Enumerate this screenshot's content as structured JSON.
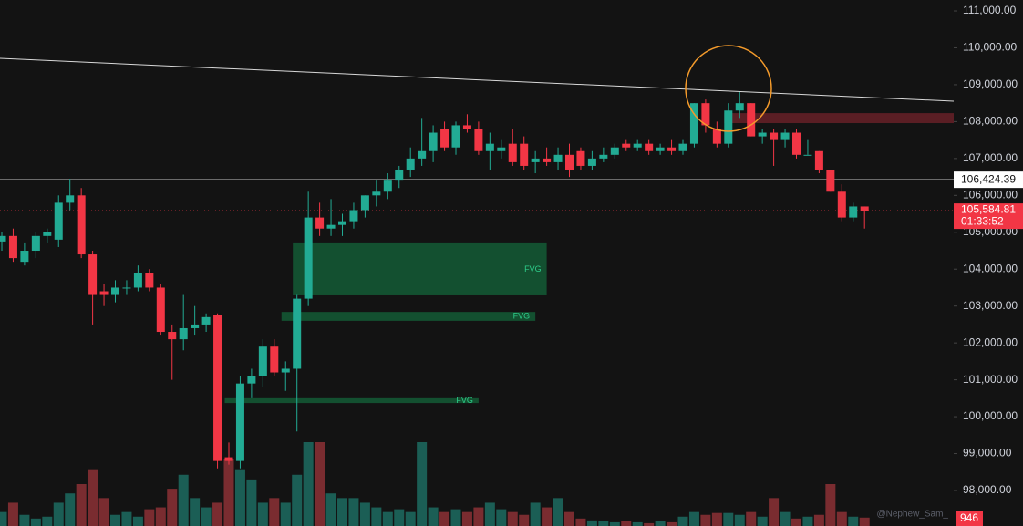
{
  "chart_data": {
    "type": "candlestick",
    "open": [
      104750,
      104900,
      104200,
      104500,
      104900,
      104800,
      105800,
      106000,
      104400,
      103400,
      103300,
      103500,
      103500,
      103900,
      103500,
      102300,
      102100,
      102400,
      102500,
      102750,
      98900,
      98800,
      100900,
      101100,
      101900,
      101200,
      101300,
      103200,
      105400,
      105100,
      105200,
      105300,
      105600,
      106000,
      106100,
      106400,
      106700,
      107000,
      107200,
      107800,
      107300,
      107900,
      107800,
      107200,
      107200,
      107400,
      107400,
      106900,
      107000,
      106900,
      107100,
      107200,
      106800,
      107000,
      107100,
      107400,
      107300,
      107400,
      107200,
      107300,
      107200,
      107400,
      108500,
      107800,
      107400,
      108300,
      108500,
      107600,
      107700,
      107500,
      107700,
      107100,
      107200,
      106700,
      106100,
      105400,
      105700
    ],
    "high": [
      105000,
      105100,
      104700,
      105000,
      105100,
      106000,
      106450,
      106200,
      104500,
      103600,
      103700,
      103700,
      104100,
      104000,
      103600,
      102500,
      103300,
      103000,
      102800,
      102800,
      99300,
      101100,
      101300,
      102100,
      102100,
      101500,
      103300,
      106100,
      105800,
      105900,
      105500,
      105800,
      106000,
      106400,
      106600,
      106800,
      107300,
      108100,
      107900,
      108000,
      108000,
      108200,
      108000,
      107700,
      107500,
      107800,
      107600,
      107200,
      107300,
      107300,
      107400,
      107300,
      107200,
      107300,
      107400,
      107500,
      107500,
      107500,
      107400,
      107500,
      107500,
      108500,
      108600,
      108000,
      108500,
      108800,
      108500,
      107800,
      107800,
      107800,
      107800,
      107500,
      107200,
      106700,
      106300,
      105800,
      105700
    ],
    "low": [
      104500,
      104200,
      104100,
      104300,
      104700,
      104600,
      105600,
      104300,
      102500,
      103000,
      103100,
      103300,
      103400,
      103400,
      102200,
      101000,
      101800,
      102200,
      102300,
      98600,
      98700,
      98600,
      100500,
      100800,
      101100,
      100700,
      99600,
      103000,
      104900,
      104900,
      104900,
      105100,
      105400,
      105700,
      105900,
      106200,
      106500,
      106800,
      106900,
      107200,
      107100,
      107700,
      107100,
      106700,
      107000,
      106800,
      106700,
      106600,
      106800,
      106700,
      106500,
      106700,
      106700,
      106900,
      107000,
      107200,
      107200,
      107100,
      107100,
      107100,
      107100,
      107300,
      107700,
      107300,
      107300,
      108100,
      107600,
      107400,
      106800,
      107300,
      107000,
      107100,
      106600,
      106100,
      105300,
      105300,
      105100
    ],
    "close": [
      104900,
      104300,
      104500,
      104900,
      105000,
      105800,
      106000,
      104400,
      103300,
      103300,
      103500,
      103500,
      103900,
      103500,
      102300,
      102100,
      102400,
      102500,
      102700,
      98800,
      98800,
      100900,
      101100,
      101900,
      101200,
      101300,
      103200,
      105400,
      105100,
      105200,
      105300,
      105600,
      106000,
      106100,
      106400,
      106700,
      107000,
      107200,
      107700,
      107300,
      107900,
      107800,
      107200,
      107400,
      107300,
      106900,
      106800,
      107000,
      106900,
      107100,
      106700,
      106800,
      107000,
      107100,
      107300,
      107300,
      107400,
      107200,
      107300,
      107200,
      107400,
      108500,
      107900,
      107400,
      108300,
      108500,
      107600,
      107700,
      107500,
      107700,
      107100,
      107100,
      106700,
      106100,
      105400,
      105700,
      105584.81
    ],
    "volume": [
      1575,
      2625,
      1260,
      840,
      1050,
      2625,
      3675,
      4725,
      6300,
      3150,
      1260,
      1575,
      1050,
      1890,
      2100,
      4200,
      5775,
      3150,
      2100,
      2625,
      7560,
      6300,
      5250,
      2625,
      3150,
      2625,
      5775,
      9450,
      9450,
      3675,
      3150,
      3150,
      2625,
      2100,
      1575,
      1890,
      1575,
      9450,
      2100,
      1575,
      1890,
      1575,
      2100,
      2625,
      1890,
      1575,
      1260,
      2625,
      2100,
      3150,
      1575,
      840,
      630,
      525,
      420,
      525,
      420,
      315,
      525,
      420,
      1050,
      1575,
      1260,
      1470,
      1470,
      1260,
      1575,
      1050,
      3150,
      1575,
      840,
      1050,
      1260,
      4725,
      1575,
      1050,
      946
    ],
    "up_color": "#22ab94",
    "down_color": "#f23645",
    "up_volume_color": "#1b5e55",
    "down_volume_color": "#7a2c30",
    "ylim": [
      97036,
      111297
    ],
    "yticks": [
      {
        "value": 98000,
        "label": "98,000.00"
      },
      {
        "value": 99000,
        "label": "99,000.00"
      },
      {
        "value": 100000,
        "label": "100,000.00"
      },
      {
        "value": 101000,
        "label": "101,000.00"
      },
      {
        "value": 102000,
        "label": "102,000.00"
      },
      {
        "value": 103000,
        "label": "103,000.00"
      },
      {
        "value": 104000,
        "label": "104,000.00"
      },
      {
        "value": 105000,
        "label": "105,000.00"
      },
      {
        "value": 106000,
        "label": "106,000.00"
      },
      {
        "value": 107000,
        "label": "107,000.00"
      },
      {
        "value": 108000,
        "label": "108,000.00"
      },
      {
        "value": 109000,
        "label": "109,000.00"
      },
      {
        "value": 110000,
        "label": "110,000.00"
      },
      {
        "value": 111000,
        "label": "111,000.00"
      }
    ],
    "grid": false,
    "trendline": [
      109715,
      108553
    ],
    "level": {
      "value": 106424.39,
      "label": "106,424.39"
    },
    "last_price": {
      "value": 105584.81,
      "label": "105,584.81"
    },
    "countdown": "01:33:52",
    "zones": [
      {
        "label": "FVG",
        "from": 26,
        "to": 48,
        "top": 104700,
        "bottom": 103290
      },
      {
        "label": "FVG",
        "from": 25,
        "to": 47,
        "top": 102840,
        "bottom": 102600
      },
      {
        "label": "FVG",
        "from": 20,
        "to": 42,
        "top": 100500,
        "bottom": 100370
      }
    ],
    "zone_color": "#145c36",
    "resistance_zone": {
      "from": 64,
      "top": 108230,
      "bottom": 107960,
      "color": "#5a1e24"
    },
    "watermark": "@Nephew_Sam_"
  }
}
